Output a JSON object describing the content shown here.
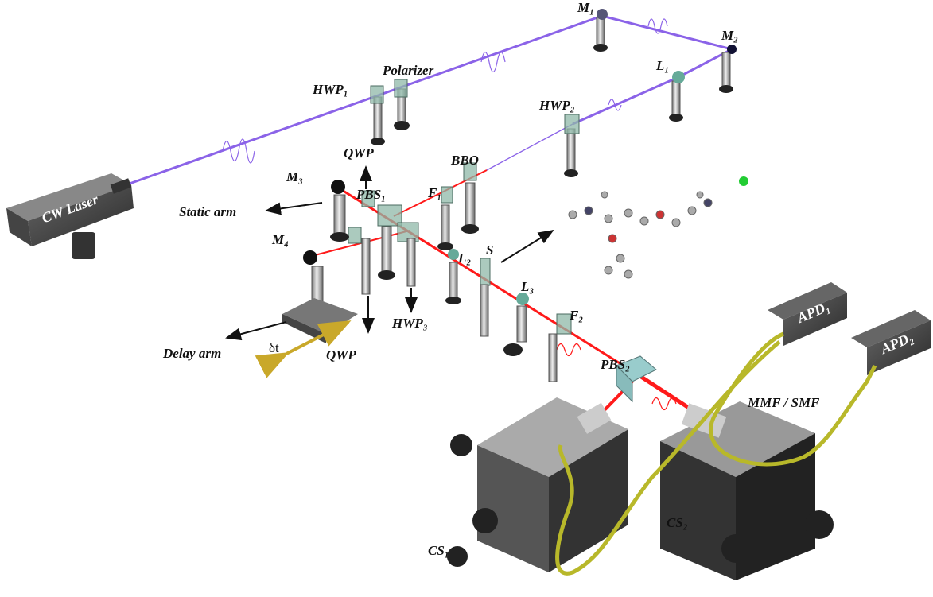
{
  "labels": [
    "CW Laser",
    "HWP₁",
    "Polarizer",
    "M₁",
    "M₂",
    "L₁",
    "HWP₂",
    "BBO",
    "F₁",
    "PBS₁",
    "QWP",
    "M₃",
    "Static arm",
    "M₄",
    "Delay arm",
    "δt",
    "QWP",
    "HWP₃",
    "L₂",
    "S",
    "L₃",
    "F₂",
    "PBS₂",
    "APD₁",
    "APD₂",
    "MMF / SMF",
    "CS₁",
    "CS₂"
  ]
}
